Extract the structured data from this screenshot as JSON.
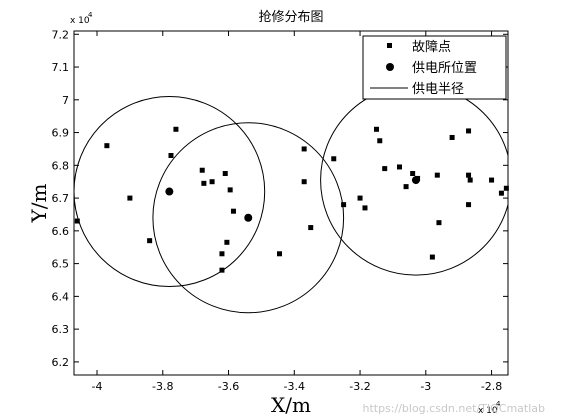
{
  "chart_data": {
    "type": "scatter",
    "title": "抢修分布图",
    "xlabel": "X/m",
    "ylabel": "Y/m",
    "x_exponent_label": "x 10",
    "x_exponent_power": "4",
    "y_exponent_label": "x 10",
    "y_exponent_power": "4",
    "xlim": [
      -4.07,
      -2.75
    ],
    "ylim": [
      6.16,
      7.21
    ],
    "xticks": [
      -4.0,
      -3.8,
      -3.6,
      -3.4,
      -3.2,
      -3.0,
      -2.8
    ],
    "xtick_labels": [
      "-4",
      "-3.8",
      "-3.6",
      "-3.4",
      "-3.2",
      "-3",
      "-2.8"
    ],
    "yticks": [
      6.2,
      6.3,
      6.4,
      6.5,
      6.6,
      6.7,
      6.8,
      6.9,
      7.0,
      7.1,
      7.2
    ],
    "ytick_labels": [
      "6.2",
      "6.3",
      "6.4",
      "6.5",
      "6.6",
      "6.7",
      "6.8",
      "6.9",
      "7",
      "7.1",
      "7.2"
    ],
    "series": [
      {
        "name": "故障点",
        "marker": "square",
        "points": [
          [
            -4.06,
            6.63
          ],
          [
            -3.97,
            6.86
          ],
          [
            -3.9,
            6.7
          ],
          [
            -3.84,
            6.57
          ],
          [
            -3.76,
            6.91
          ],
          [
            -3.775,
            6.83
          ],
          [
            -3.68,
            6.785
          ],
          [
            -3.675,
            6.745
          ],
          [
            -3.65,
            6.75
          ],
          [
            -3.61,
            6.775
          ],
          [
            -3.595,
            6.725
          ],
          [
            -3.585,
            6.66
          ],
          [
            -3.605,
            6.565
          ],
          [
            -3.62,
            6.53
          ],
          [
            -3.62,
            6.48
          ],
          [
            -3.445,
            6.53
          ],
          [
            -3.37,
            6.85
          ],
          [
            -3.37,
            6.75
          ],
          [
            -3.35,
            6.61
          ],
          [
            -3.28,
            6.82
          ],
          [
            -3.25,
            6.68
          ],
          [
            -3.2,
            6.7
          ],
          [
            -3.185,
            6.67
          ],
          [
            -3.15,
            6.91
          ],
          [
            -3.14,
            6.875
          ],
          [
            -3.125,
            6.79
          ],
          [
            -3.08,
            6.795
          ],
          [
            -3.06,
            6.735
          ],
          [
            -3.04,
            6.775
          ],
          [
            -3.025,
            6.76
          ],
          [
            -2.98,
            6.52
          ],
          [
            -2.965,
            6.77
          ],
          [
            -2.96,
            6.625
          ],
          [
            -2.92,
            6.885
          ],
          [
            -2.87,
            6.905
          ],
          [
            -2.87,
            6.68
          ],
          [
            -2.87,
            6.77
          ],
          [
            -2.865,
            6.755
          ],
          [
            -2.8,
            6.755
          ],
          [
            -2.77,
            6.715
          ],
          [
            -2.755,
            6.73
          ]
        ]
      },
      {
        "name": "供电所位置",
        "marker": "circle",
        "points": [
          [
            -3.78,
            6.72
          ],
          [
            -3.54,
            6.64
          ],
          [
            -3.03,
            6.755
          ]
        ]
      },
      {
        "name": "供电半径",
        "marker": "line"
      }
    ],
    "radius_circles": [
      {
        "center": [
          -3.78,
          6.72
        ],
        "radius": 0.29
      },
      {
        "center": [
          -3.54,
          6.64
        ],
        "radius": 0.29
      },
      {
        "center": [
          -3.03,
          6.755
        ],
        "radius": 0.29
      }
    ],
    "grid": false,
    "legend_position": "top-right"
  },
  "watermark": "https://blog.csdn.net/TIQCmatlab"
}
